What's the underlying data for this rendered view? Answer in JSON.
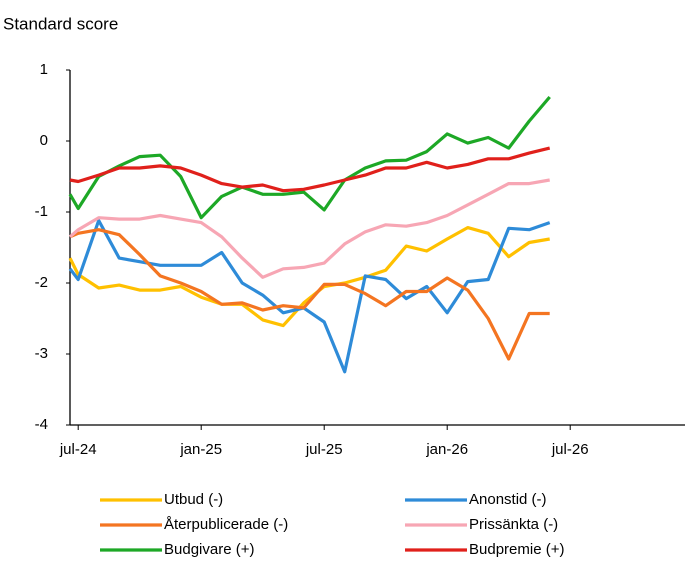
{
  "chart_data": {
    "type": "line",
    "y_label": "Standard score",
    "x": [
      -0.4,
      0,
      1,
      2,
      3,
      4,
      5,
      6,
      7,
      8,
      9,
      10,
      11,
      12,
      13,
      14,
      15,
      16,
      17,
      18,
      19,
      20,
      21,
      22,
      23
    ],
    "xlim": [
      -0.4,
      29.6
    ],
    "xticks": [
      {
        "value": 0,
        "label": "jul-24"
      },
      {
        "value": 6,
        "label": "jan-25"
      },
      {
        "value": 12,
        "label": "jul-25"
      },
      {
        "value": 18,
        "label": "jan-26"
      },
      {
        "value": 24,
        "label": "jul-26"
      }
    ],
    "ylim": [
      -4,
      1
    ],
    "yticks": [
      1,
      0,
      -1,
      -2,
      -3,
      -4
    ],
    "grid": false,
    "series": [
      {
        "name": "Utbud (-)",
        "color": "#ffc000",
        "values": [
          -1.65,
          -1.88,
          -2.07,
          -2.03,
          -2.1,
          -2.1,
          -2.05,
          -2.2,
          -2.3,
          -2.3,
          -2.52,
          -2.6,
          -2.28,
          -2.05,
          -2.0,
          -1.92,
          -1.82,
          -1.48,
          -1.55,
          -1.38,
          -1.22,
          -1.3,
          -1.63,
          -1.43,
          -1.38
        ]
      },
      {
        "name": "Anonstid (-)",
        "color": "#2e8bd8",
        "values": [
          -1.8,
          -1.95,
          -1.12,
          -1.65,
          -1.7,
          -1.75,
          -1.75,
          -1.75,
          -1.57,
          -2.0,
          -2.17,
          -2.42,
          -2.35,
          -2.55,
          -3.25,
          -1.9,
          -1.95,
          -2.22,
          -2.05,
          -2.42,
          -1.98,
          -1.95,
          -1.23,
          -1.25,
          -1.15
        ]
      },
      {
        "name": "Återpublicerade (-)",
        "color": "#f47521",
        "values": [
          -1.35,
          -1.3,
          -1.25,
          -1.32,
          -1.6,
          -1.9,
          -2.0,
          -2.12,
          -2.3,
          -2.28,
          -2.38,
          -2.32,
          -2.35,
          -2.02,
          -2.02,
          -2.15,
          -2.32,
          -2.12,
          -2.12,
          -1.93,
          -2.1,
          -2.5,
          -3.07,
          -2.43,
          -2.43
        ]
      },
      {
        "name": "Prissänkta (-)",
        "color": "#f7a6b4",
        "values": [
          -1.35,
          -1.25,
          -1.08,
          -1.1,
          -1.1,
          -1.05,
          -1.1,
          -1.15,
          -1.35,
          -1.65,
          -1.92,
          -1.8,
          -1.78,
          -1.72,
          -1.45,
          -1.28,
          -1.18,
          -1.2,
          -1.15,
          -1.05,
          -0.9,
          -0.75,
          -0.6,
          -0.6,
          -0.55
        ]
      },
      {
        "name": "Budgivare (+)",
        "color": "#1da826",
        "values": [
          -0.75,
          -0.95,
          -0.5,
          -0.35,
          -0.22,
          -0.2,
          -0.5,
          -1.08,
          -0.78,
          -0.65,
          -0.75,
          -0.75,
          -0.72,
          -0.97,
          -0.55,
          -0.38,
          -0.28,
          -0.27,
          -0.15,
          0.1,
          -0.03,
          0.05,
          -0.1,
          0.28,
          0.62
        ]
      },
      {
        "name": "Budpremie (+)",
        "color": "#e0201b",
        "values": [
          -0.55,
          -0.57,
          -0.48,
          -0.38,
          -0.38,
          -0.35,
          -0.38,
          -0.48,
          -0.6,
          -0.65,
          -0.62,
          -0.7,
          -0.68,
          -0.62,
          -0.55,
          -0.48,
          -0.38,
          -0.38,
          -0.3,
          -0.38,
          -0.33,
          -0.25,
          -0.25,
          -0.17,
          -0.1
        ]
      }
    ]
  }
}
